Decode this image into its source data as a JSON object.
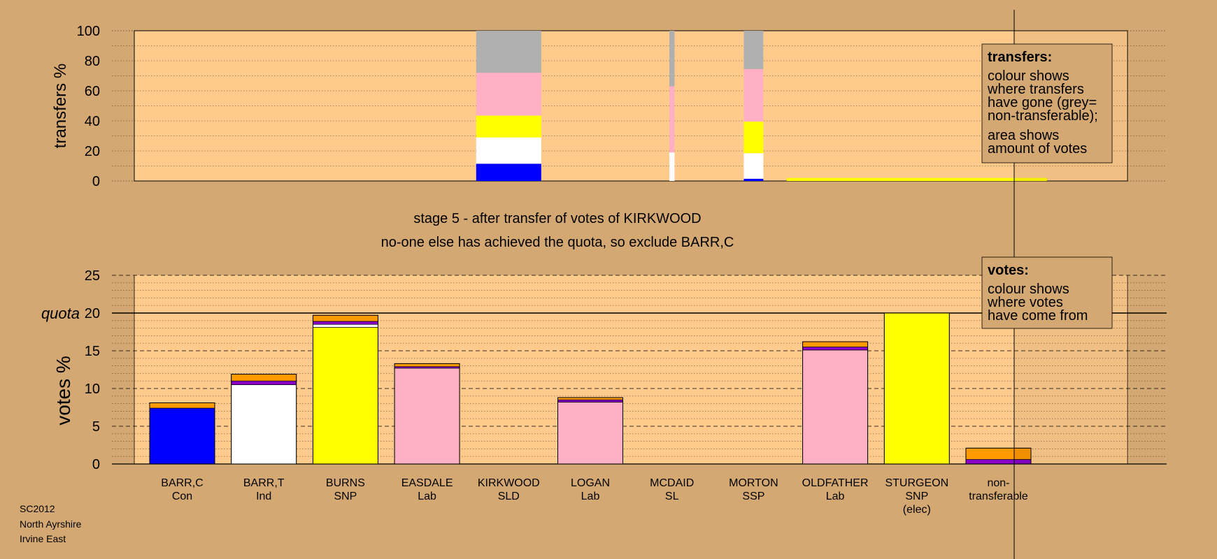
{
  "chart_data": {
    "type": "bar",
    "colors": {
      "background": "#d4a873",
      "plot_bg": "#fecb8c",
      "BARR,C": "#0000ff",
      "BARR,T": "#ffffff",
      "SNP": "#ffff00",
      "Lab": "#ffb0c4",
      "Other": "#ff9a00",
      "Purple": "#8a00c8",
      "non_transferable": "#b0b0b0"
    },
    "candidates": [
      {
        "name": "BARR,C",
        "party": "Con"
      },
      {
        "name": "BARR,T",
        "party": "Ind"
      },
      {
        "name": "BURNS",
        "party": "SNP"
      },
      {
        "name": "EASDALE",
        "party": "Lab"
      },
      {
        "name": "KIRKWOOD",
        "party": "SLD"
      },
      {
        "name": "LOGAN",
        "party": "Lab"
      },
      {
        "name": "MCDAID",
        "party": "SL"
      },
      {
        "name": "MORTON",
        "party": "SSP"
      },
      {
        "name": "OLDFATHER",
        "party": "Lab"
      },
      {
        "name": "STURGEON",
        "party": "SNP",
        "note": "(elec)"
      },
      {
        "name": "non-",
        "party": "transferable"
      }
    ],
    "transfers": {
      "ylabel": "transfers %",
      "ylim": [
        0,
        100
      ],
      "yticks": [
        "0",
        "20",
        "40",
        "60",
        "80",
        "100"
      ],
      "bars": [
        {
          "candidate": 4,
          "width": 1.0,
          "segments": [
            {
              "color": "BARR,C",
              "value": 11.5
            },
            {
              "color": "BARR,T",
              "value": 17.5
            },
            {
              "color": "SNP",
              "value": 14.5
            },
            {
              "color": "Lab",
              "value": 28.5
            },
            {
              "color": "non_transferable",
              "value": 28.0
            }
          ]
        },
        {
          "candidate": 6,
          "width": 0.08,
          "segments": [
            {
              "color": "BARR,T",
              "value": 19.0
            },
            {
              "color": "Lab",
              "value": 44.0
            },
            {
              "color": "non_transferable",
              "value": 37.0
            }
          ]
        },
        {
          "candidate": 7,
          "width": 0.3,
          "segments": [
            {
              "color": "BARR,C",
              "value": 1.5
            },
            {
              "color": "BARR,T",
              "value": 17.0
            },
            {
              "color": "SNP",
              "value": 21.0
            },
            {
              "color": "Lab",
              "value": 35.0
            },
            {
              "color": "non_transferable",
              "value": 25.5
            }
          ]
        },
        {
          "candidate": 9,
          "width": 4.0,
          "segments": [
            {
              "color": "SNP",
              "value": 2.0
            }
          ]
        }
      ]
    },
    "votes": {
      "ylabel": "votes %",
      "ylim": [
        0,
        25
      ],
      "yticks": [
        "0",
        "5",
        "10",
        "15",
        "20",
        "25"
      ],
      "quota": 20,
      "quota_label": "quota",
      "bars": [
        {
          "candidate": 0,
          "segments": [
            {
              "color": "BARR,C",
              "value": 7.4
            },
            {
              "color": "Other",
              "value": 0.7
            }
          ]
        },
        {
          "candidate": 1,
          "segments": [
            {
              "color": "BARR,T",
              "value": 10.5
            },
            {
              "color": "Purple",
              "value": 0.5
            },
            {
              "color": "Other",
              "value": 0.9
            }
          ]
        },
        {
          "candidate": 2,
          "segments": [
            {
              "color": "SNP",
              "value": 18.1
            },
            {
              "color": "BARR,T",
              "value": 0.4
            },
            {
              "color": "Purple",
              "value": 0.4
            },
            {
              "color": "Other",
              "value": 0.8
            }
          ]
        },
        {
          "candidate": 3,
          "segments": [
            {
              "color": "Lab",
              "value": 12.7
            },
            {
              "color": "Purple",
              "value": 0.2
            },
            {
              "color": "Other",
              "value": 0.4
            }
          ]
        },
        {
          "candidate": 5,
          "segments": [
            {
              "color": "Lab",
              "value": 8.2
            },
            {
              "color": "Purple",
              "value": 0.3
            },
            {
              "color": "Other",
              "value": 0.3
            }
          ]
        },
        {
          "candidate": 8,
          "segments": [
            {
              "color": "Lab",
              "value": 15.1
            },
            {
              "color": "Purple",
              "value": 0.4
            },
            {
              "color": "Other",
              "value": 0.7
            }
          ]
        },
        {
          "candidate": 9,
          "segments": [
            {
              "color": "SNP",
              "value": 20.0
            }
          ]
        },
        {
          "candidate": 10,
          "segments": [
            {
              "color": "Purple",
              "value": 0.6
            },
            {
              "color": "Other",
              "value": 1.5
            }
          ]
        }
      ]
    },
    "stage_title": "stage 5 - after transfer of votes of KIRKWOOD",
    "stage_subtitle": "no-one else has achieved the quota, so exclude BARR,C",
    "legend_transfers": {
      "title": "transfers:",
      "lines1": [
        "colour shows",
        "where transfers",
        "have gone (grey=",
        "non-transferable);"
      ],
      "lines2": [
        "area shows",
        "amount of votes"
      ]
    },
    "legend_votes": {
      "title": "votes:",
      "lines1": [
        "colour shows",
        "where votes",
        "have come from"
      ]
    }
  },
  "footer": {
    "line1": "SC2012",
    "line2": "North Ayrshire",
    "line3": "Irvine East"
  }
}
